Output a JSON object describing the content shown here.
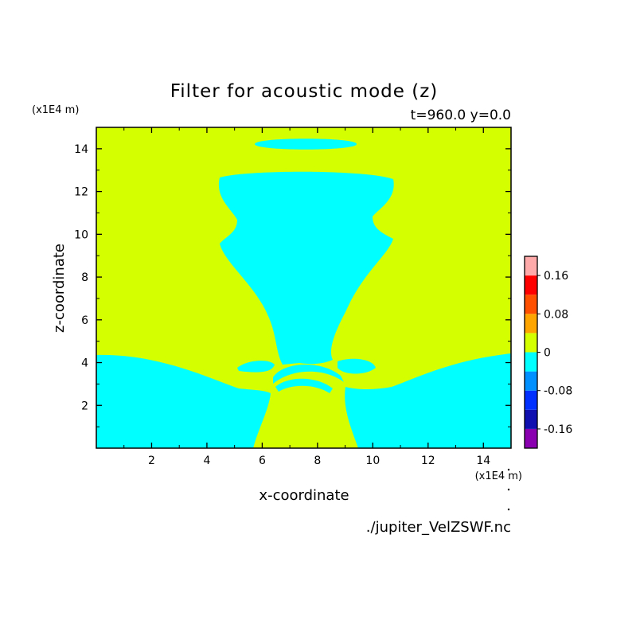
{
  "chart_data": {
    "type": "heatmap",
    "title": "Filter for acoustic mode (z)",
    "subtitle": "t=960.0 y=0.0",
    "xlabel": "x-coordinate",
    "ylabel": "z-coordinate",
    "x_unit": "(x1E4 m)",
    "y_unit": "(x1E4 m)",
    "xlim": [
      0,
      15
    ],
    "ylim": [
      0,
      15
    ],
    "x_ticks": [
      2,
      4,
      6,
      8,
      10,
      12,
      14
    ],
    "y_ticks": [
      2,
      4,
      6,
      8,
      10,
      12,
      14
    ],
    "x_tick_labels": [
      "2",
      "4",
      "6",
      "8",
      "10",
      "12",
      "14"
    ],
    "y_tick_labels": [
      "2",
      "4",
      "6",
      "8",
      "10",
      "12",
      "14"
    ],
    "background_level_color": "#d4ff00",
    "region_level_color": "#00ffff",
    "regions_value_range": [
      -0.04,
      0
    ],
    "background_value_range": [
      0,
      0.04
    ],
    "colorbar": {
      "levels": [
        -0.2,
        -0.16,
        -0.12,
        -0.08,
        -0.04,
        0,
        0.04,
        0.08,
        0.12,
        0.16,
        0.2
      ],
      "colors": [
        "#8a00b0",
        "#1010b0",
        "#0030ff",
        "#0090ff",
        "#00ffff",
        "#d4ff00",
        "#ffa500",
        "#ff5000",
        "#ff0000",
        "#ffaaaa"
      ],
      "labels": [
        "0.16",
        "0.08",
        "0",
        "-0.08",
        "-0.16"
      ],
      "label_values": [
        0.16,
        0.08,
        0,
        -0.08,
        -0.16
      ]
    },
    "source_file": "./jupiter_VelZSWF.nc"
  }
}
